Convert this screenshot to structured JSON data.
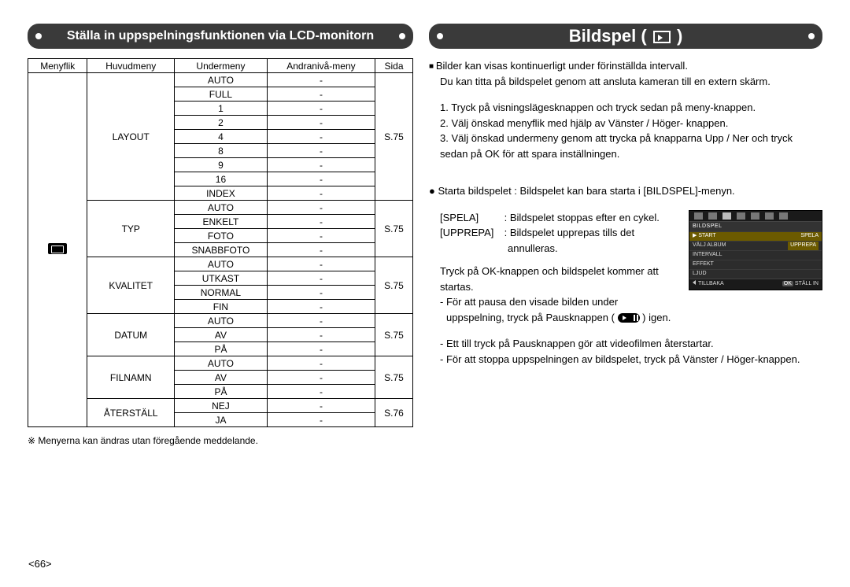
{
  "pageNumber": "<66>",
  "leftTitle": "Ställa in uppspelningsfunktionen via LCD-monitorn",
  "rightTitle": "Bildspel (",
  "rightTitleEnd": ")",
  "table": {
    "headers": [
      "Menyflik",
      "Huvudmeny",
      "Undermeny",
      "Andranivå-meny",
      "Sida"
    ],
    "groups": [
      {
        "main": "LAYOUT",
        "page": "S.75",
        "subs": [
          "AUTO",
          "FULL",
          "1",
          "2",
          "4",
          "8",
          "9",
          "16",
          "INDEX"
        ]
      },
      {
        "main": "TYP",
        "page": "S.75",
        "subs": [
          "AUTO",
          "ENKELT",
          "FOTO",
          "SNABBFOTO"
        ]
      },
      {
        "main": "KVALITET",
        "page": "S.75",
        "subs": [
          "AUTO",
          "UTKAST",
          "NORMAL",
          "FIN"
        ]
      },
      {
        "main": "DATUM",
        "page": "S.75",
        "subs": [
          "AUTO",
          "AV",
          "PÅ"
        ]
      },
      {
        "main": "FILNAMN",
        "page": "S.75",
        "subs": [
          "AUTO",
          "AV",
          "PÅ"
        ]
      },
      {
        "main": "ÅTERSTÄLL",
        "page": "S.76",
        "subs": [
          "NEJ",
          "JA"
        ]
      }
    ],
    "tertiaryDash": "-"
  },
  "footnote": "※ Menyerna kan ändras utan föregående meddelande.",
  "right": {
    "intro1": "Bilder kan visas kontinuerligt under förinställda intervall.",
    "intro2": "Du kan titta på bildspelet genom att ansluta kameran till en extern skärm.",
    "steps": [
      "1. Tryck på visningslägesknappen och tryck sedan på meny-knappen.",
      "2. Välj önskad menyflik med hjälp av Vänster / Höger- knappen.",
      "3. Välj önskad undermeny genom att trycka på knapparna Upp / Ner och tryck sedan på OK för att spara inställningen."
    ],
    "sectionTitle": "Starta bildspelet : Bildspelet kan bara starta i [BILDSPEL]-menyn.",
    "defs": {
      "spelaLabel": "[SPELA]",
      "spelaText": ": Bildspelet stoppas efter en cykel.",
      "upprepaLabel": "[UPPREPA]",
      "upprepaText1": ": Bildspelet upprepas tills det",
      "upprepaText2": "annulleras."
    },
    "after": "Tryck på OK-knappen och bildspelet kommer att startas.",
    "bul1a": "- För att pausa den visade bilden under",
    "bul1b": "uppspelning, tryck på Pausknappen (",
    "bul1c": ") igen.",
    "bul2": "- Ett till tryck på Pausknappen gör att videofilmen återstartar.",
    "bul3": "- För att stoppa uppspelningen av bildspelet, tryck på Vänster / Höger-knappen."
  },
  "lcd": {
    "title": "BILDSPEL",
    "rows": [
      {
        "left": "START",
        "right": "SPELA",
        "hl": true
      },
      {
        "left": "VÄLJ ALBUM",
        "right": "UPPREPA",
        "sel": true
      },
      {
        "left": "INTERVALL",
        "right": ""
      },
      {
        "left": "EFFEKT",
        "right": ""
      },
      {
        "left": "LJUD",
        "right": ""
      }
    ],
    "back": "TILLBAKA",
    "ok": "OK",
    "set": "STÄLL IN"
  }
}
